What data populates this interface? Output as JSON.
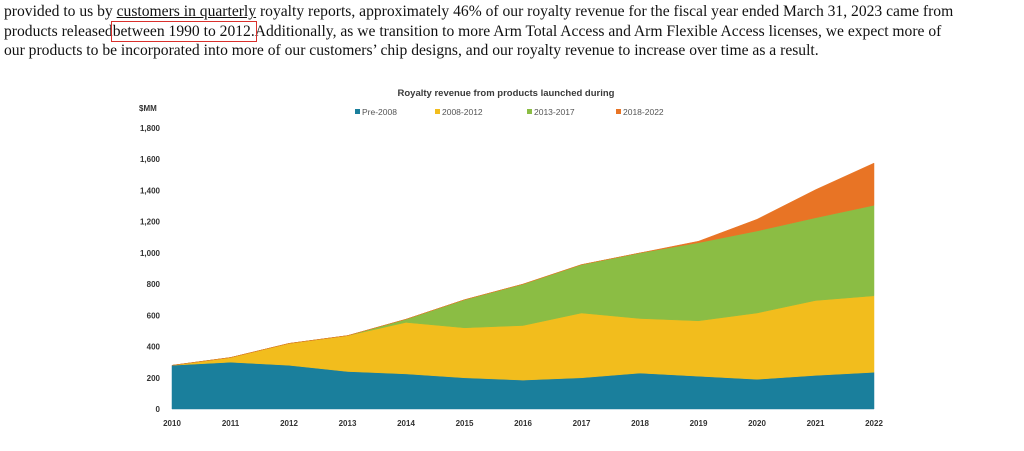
{
  "paragraph": {
    "line1_a": "provided to us by ",
    "line1_b": "customers in quarterly",
    "line1_c": " royalty reports, approximately 46% of our royalty revenue for the fiscal year ended March 31, 2023 came from",
    "line2_a": "products released",
    "line2_boxed": "between 1990 to 2012.",
    "line2_c": "Additionally, as we transition to more Arm Total Access and Arm Flexible Access licenses, we expect more of",
    "line3": "our products to be incorporated into more of our customers’ chip designs, and our royalty revenue to increase over time as a result."
  },
  "chart_data": {
    "type": "area",
    "stacked": true,
    "title": "Royalty revenue from products launched during",
    "ylabel": "$MM",
    "xlabel": "",
    "ylim": [
      0,
      1800
    ],
    "yticks": [
      0,
      200,
      400,
      600,
      800,
      1000,
      1200,
      1400,
      1600,
      1800
    ],
    "ytick_labels": [
      "0",
      "200",
      "400",
      "600",
      "800",
      "1,000",
      "1,200",
      "1,400",
      "1,600",
      "1,800"
    ],
    "x": [
      "2010",
      "2011",
      "2012",
      "2013",
      "2014",
      "2015",
      "2016",
      "2017",
      "2018",
      "2019",
      "2020",
      "2021",
      "2022"
    ],
    "legend_position": "top",
    "series": [
      {
        "name": "Pre-2008",
        "color": "#1a7f9c",
        "values": [
          280,
          300,
          280,
          240,
          225,
          200,
          185,
          200,
          230,
          210,
          190,
          215,
          235
        ]
      },
      {
        "name": "2008-2012",
        "color": "#f2bd1d",
        "values": [
          0,
          30,
          140,
          230,
          330,
          320,
          350,
          415,
          350,
          355,
          425,
          480,
          490
        ]
      },
      {
        "name": "2013-2017",
        "color": "#8bbd44",
        "values": [
          0,
          0,
          0,
          0,
          20,
          180,
          265,
          310,
          420,
          500,
          525,
          530,
          580
        ]
      },
      {
        "name": "2018-2022",
        "color": "#e87425",
        "values": [
          0,
          0,
          0,
          0,
          0,
          0,
          0,
          0,
          0,
          10,
          75,
          180,
          270
        ]
      }
    ]
  }
}
